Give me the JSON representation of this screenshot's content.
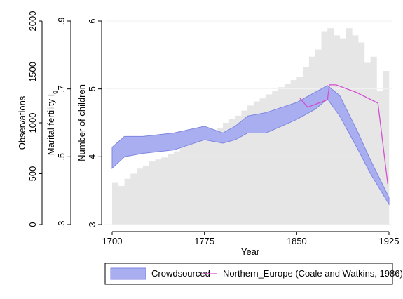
{
  "chart_data": {
    "type": "combo",
    "x_label": "Year",
    "y_label": "Number of children",
    "y2_label": "Marital fertility I",
    "y2_label_sub": "g",
    "y3_label": "Observations",
    "xlim": [
      1700,
      1925
    ],
    "xticks": [
      1700,
      1775,
      1850,
      1925
    ],
    "ylim": [
      3,
      6
    ],
    "yticks": [
      3,
      4,
      5,
      6
    ],
    "y2lim": [
      0.3,
      0.9
    ],
    "y2ticks": [
      {
        "value": 0.3,
        "label": ".3"
      },
      {
        "value": 0.5,
        "label": ".5"
      },
      {
        "value": 0.7,
        "label": ".7"
      },
      {
        "value": 0.9,
        "label": ".9"
      }
    ],
    "y3lim": [
      0,
      2000
    ],
    "y3ticks": [
      0,
      500,
      1000,
      1500,
      2000
    ],
    "grid": true,
    "observations": {
      "color": "#e6e6e6",
      "axis": "y3",
      "bins": [
        1700,
        1705,
        1710,
        1715,
        1720,
        1725,
        1730,
        1735,
        1740,
        1745,
        1750,
        1755,
        1760,
        1765,
        1770,
        1775,
        1780,
        1785,
        1790,
        1795,
        1800,
        1805,
        1810,
        1815,
        1820,
        1825,
        1830,
        1835,
        1840,
        1845,
        1850,
        1855,
        1860,
        1865,
        1870,
        1875,
        1880,
        1885,
        1890,
        1895,
        1900,
        1905,
        1910,
        1915,
        1920,
        1925
      ],
      "counts": [
        410,
        380,
        450,
        500,
        550,
        580,
        620,
        640,
        660,
        690,
        720,
        760,
        790,
        830,
        860,
        880,
        900,
        950,
        1000,
        1040,
        1070,
        1120,
        1170,
        1210,
        1240,
        1280,
        1310,
        1350,
        1380,
        1420,
        1450,
        1550,
        1650,
        1720,
        1900,
        1930,
        1860,
        1830,
        1930,
        1860,
        1790,
        1590,
        1650,
        1310,
        1510
      ]
    },
    "band": {
      "name": "Crowdsourced",
      "color": "#a9aef0",
      "x": [
        1700,
        1710,
        1725,
        1750,
        1775,
        1790,
        1800,
        1810,
        1825,
        1850,
        1865,
        1875,
        1885,
        1900,
        1910,
        1925
      ],
      "lower": [
        3.83,
        4.0,
        4.05,
        4.1,
        4.25,
        4.2,
        4.25,
        4.35,
        4.35,
        4.55,
        4.7,
        4.85,
        4.6,
        4.1,
        3.75,
        3.3
      ],
      "upper": [
        4.14,
        4.3,
        4.3,
        4.35,
        4.45,
        4.35,
        4.45,
        4.6,
        4.65,
        4.8,
        4.95,
        5.05,
        4.9,
        4.35,
        3.95,
        3.4
      ]
    },
    "series": [
      {
        "name": "Northern_Europe (Coale and Watkins, 1986)",
        "color": "#d44fd0",
        "axis": "y2",
        "x": [
          1852.6,
          1859,
          1875,
          1876.6,
          1882,
          1899,
          1916,
          1924
        ],
        "values": [
          0.672,
          0.646,
          0.668,
          0.712,
          0.712,
          0.689,
          0.658,
          0.42
        ]
      }
    ]
  }
}
